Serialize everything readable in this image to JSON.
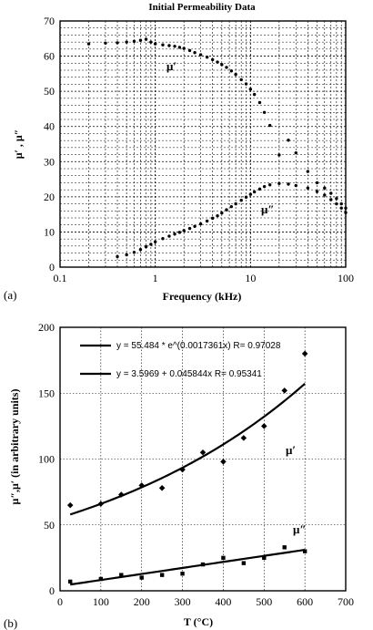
{
  "chart_data": [
    {
      "type": "scatter",
      "title": "Initial Permeability Data",
      "panel_label": "(a)",
      "xlabel": "Frequency (kHz)",
      "ylabel": "μ′ , μ″",
      "x_scale": "log",
      "xlim": [
        0.1,
        100
      ],
      "ylim": [
        0,
        70
      ],
      "x_ticks": [
        "0.1",
        "1",
        "10",
        "100"
      ],
      "y_ticks": [
        "0",
        "10",
        "20",
        "30",
        "40",
        "50",
        "60",
        "70"
      ],
      "grid": true,
      "curve_labels": [
        "μ′",
        "μ″"
      ],
      "series": [
        {
          "x": [
            0.2,
            0.3,
            0.4,
            0.5,
            0.6,
            0.7,
            0.8,
            0.9,
            1.0,
            1.2,
            1.4,
            1.6,
            1.8,
            2.0,
            2.3,
            2.6,
            3.0,
            3.5,
            4.0,
            4.5,
            5.0,
            5.6,
            6.3,
            7.0,
            8.0,
            9.0,
            10,
            11,
            12.5,
            14,
            16,
            20,
            25,
            30,
            40,
            50,
            60,
            70,
            80,
            90,
            100
          ],
          "y": [
            63.5,
            63.7,
            63.8,
            64.0,
            64.2,
            64.5,
            64.8,
            64.0,
            63.5,
            63.2,
            63.0,
            62.8,
            62.5,
            62.2,
            61.6,
            61.0,
            60.4,
            59.7,
            59.0,
            58.3,
            57.6,
            56.8,
            55.8,
            54.8,
            53.3,
            52.1,
            50.6,
            49.1,
            46.8,
            44.0,
            40.3,
            31.9,
            36.1,
            32.5,
            27.2,
            24.0,
            22.5,
            21.0,
            19.5,
            18.0,
            16.8
          ]
        },
        {
          "x": [
            0.4,
            0.5,
            0.6,
            0.7,
            0.8,
            0.9,
            1.0,
            1.2,
            1.4,
            1.6,
            1.8,
            2.0,
            2.3,
            2.6,
            3.0,
            3.5,
            4.0,
            4.5,
            5.0,
            5.6,
            6.3,
            7.0,
            8.0,
            9.0,
            10,
            11,
            12.5,
            14,
            16,
            20,
            25,
            30,
            40,
            50,
            60,
            70,
            80,
            90,
            100
          ],
          "y": [
            3.0,
            3.5,
            4.2,
            5.0,
            5.8,
            6.5,
            7.2,
            8.1,
            8.8,
            9.4,
            9.9,
            10.4,
            11.0,
            11.6,
            12.3,
            13.1,
            13.9,
            14.6,
            15.4,
            16.3,
            17.2,
            18.0,
            19.0,
            19.9,
            20.7,
            21.4,
            22.2,
            22.9,
            23.4,
            23.8,
            23.6,
            23.2,
            22.5,
            21.5,
            20.5,
            19.2,
            18.0,
            16.8,
            15.5
          ]
        }
      ]
    },
    {
      "type": "scatter",
      "panel_label": "(b)",
      "xlabel": "T (°C)",
      "ylabel": "μ″,μ′ (in arbitrary units)",
      "xlim": [
        0,
        700
      ],
      "ylim": [
        0,
        200
      ],
      "x_ticks": [
        "0",
        "100",
        "200",
        "300",
        "400",
        "500",
        "600",
        "700"
      ],
      "y_ticks": [
        "0",
        "50",
        "100",
        "150",
        "200"
      ],
      "grid": true,
      "curve_labels": [
        "μ′",
        "μ″"
      ],
      "fits": [
        "y = 55.484 * e^(0.0017361x) R= 0.97028",
        "y = 3.5969 + 0.045844x R= 0.95341"
      ],
      "series": [
        {
          "x": [
            25,
            100,
            150,
            200,
            250,
            300,
            350,
            400,
            450,
            500,
            550,
            600
          ],
          "y": [
            65,
            66,
            73,
            80,
            78,
            92,
            105,
            98,
            116,
            125,
            152,
            180
          ]
        },
        {
          "x": [
            25,
            100,
            150,
            200,
            250,
            300,
            350,
            400,
            450,
            500,
            550,
            600
          ],
          "y": [
            7,
            9,
            12,
            10,
            12,
            13,
            20,
            25,
            21,
            25,
            33,
            30
          ]
        }
      ],
      "fit_params": [
        {
          "type": "exp",
          "a": 55.484,
          "b": 0.0017361,
          "xrange": [
            25,
            600
          ]
        },
        {
          "type": "linear",
          "a": 3.5969,
          "b": 0.045844,
          "xrange": [
            25,
            600
          ]
        }
      ]
    }
  ]
}
